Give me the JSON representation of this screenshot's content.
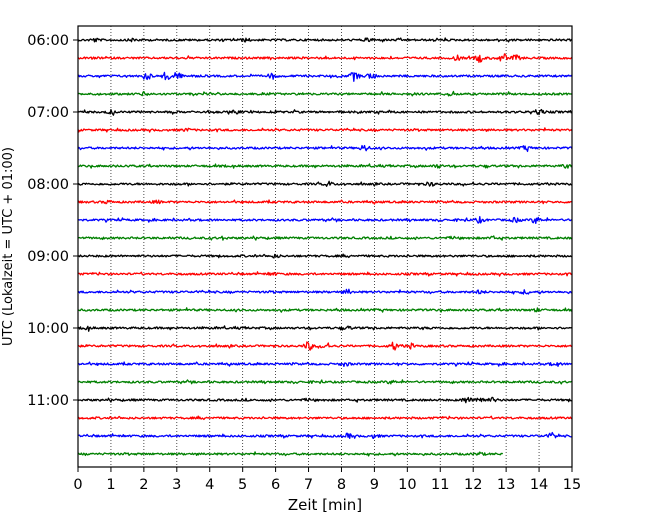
{
  "chart_data": {
    "type": "line",
    "title": "",
    "xlabel": "Zeit  [min]",
    "ylabel": "UTC (Lokalzeit = UTC + 01:00)",
    "xlim": [
      0,
      15
    ],
    "x_ticks": [
      "0",
      "1",
      "2",
      "3",
      "4",
      "5",
      "6",
      "7",
      "8",
      "9",
      "10",
      "11",
      "12",
      "13",
      "14",
      "15"
    ],
    "y_tick_labels": [
      "06:00",
      "07:00",
      "08:00",
      "09:00",
      "10:00",
      "11:00"
    ],
    "grid": "vertical dotted lines at each minute",
    "line_colors": [
      "#000000",
      "#ff0000",
      "#0000ff",
      "#008000"
    ],
    "traces": [
      {
        "start": "06:00",
        "color": "#000000",
        "end_min": 15,
        "bursts": [
          {
            "t": 0.5,
            "a": 1.5
          },
          {
            "t": 1.7,
            "a": 1.5
          },
          {
            "t": 5.1,
            "a": 1.2
          },
          {
            "t": 8.8,
            "a": 1.3
          }
        ]
      },
      {
        "start": "06:15",
        "color": "#ff0000",
        "end_min": 15,
        "bursts": [
          {
            "t": 11.5,
            "a": 2.0
          },
          {
            "t": 12.2,
            "a": 3.5
          },
          {
            "t": 12.9,
            "a": 4.0
          },
          {
            "t": 13.3,
            "a": 2.5
          }
        ]
      },
      {
        "start": "06:30",
        "color": "#0000ff",
        "end_min": 15,
        "bursts": [
          {
            "t": 2.1,
            "a": 3.0
          },
          {
            "t": 2.7,
            "a": 4.0
          },
          {
            "t": 3.0,
            "a": 3.5
          },
          {
            "t": 5.9,
            "a": 2.5
          },
          {
            "t": 8.4,
            "a": 4.5
          },
          {
            "t": 8.9,
            "a": 3.0
          }
        ]
      },
      {
        "start": "06:45",
        "color": "#008000",
        "end_min": 15,
        "bursts": [
          {
            "t": 2.0,
            "a": 1.5
          },
          {
            "t": 11.3,
            "a": 1.5
          }
        ]
      },
      {
        "start": "07:00",
        "color": "#000000",
        "end_min": 15,
        "bursts": [
          {
            "t": 1.0,
            "a": 1.5
          },
          {
            "t": 4.8,
            "a": 1.3
          },
          {
            "t": 14.0,
            "a": 2.5
          }
        ]
      },
      {
        "start": "07:15",
        "color": "#ff0000",
        "end_min": 15,
        "bursts": [
          {
            "t": 3.3,
            "a": 1.2
          }
        ]
      },
      {
        "start": "07:30",
        "color": "#0000ff",
        "end_min": 15,
        "bursts": [
          {
            "t": 8.7,
            "a": 3.0
          },
          {
            "t": 13.6,
            "a": 1.8
          }
        ]
      },
      {
        "start": "07:45",
        "color": "#008000",
        "end_min": 15,
        "bursts": [
          {
            "t": 10.9,
            "a": 1.5
          },
          {
            "t": 14.8,
            "a": 1.2
          }
        ]
      },
      {
        "start": "08:00",
        "color": "#000000",
        "end_min": 15,
        "bursts": [
          {
            "t": 7.6,
            "a": 2.0
          },
          {
            "t": 10.7,
            "a": 1.8
          }
        ]
      },
      {
        "start": "08:15",
        "color": "#ff0000",
        "end_min": 15,
        "bursts": [
          {
            "t": 0.9,
            "a": 1.2
          },
          {
            "t": 2.4,
            "a": 1.2
          }
        ]
      },
      {
        "start": "08:30",
        "color": "#0000ff",
        "end_min": 15,
        "bursts": [
          {
            "t": 12.2,
            "a": 2.5
          },
          {
            "t": 13.3,
            "a": 2.0
          },
          {
            "t": 13.9,
            "a": 3.0
          }
        ]
      },
      {
        "start": "08:45",
        "color": "#008000",
        "end_min": 15,
        "bursts": [
          {
            "t": 4.4,
            "a": 1.2
          },
          {
            "t": 12.6,
            "a": 1.2
          }
        ]
      },
      {
        "start": "09:00",
        "color": "#000000",
        "end_min": 15,
        "bursts": [
          {
            "t": 6.0,
            "a": 1.3
          }
        ]
      },
      {
        "start": "09:15",
        "color": "#ff0000",
        "end_min": 15,
        "bursts": [
          {
            "t": 5.9,
            "a": 1.2
          }
        ]
      },
      {
        "start": "09:30",
        "color": "#0000ff",
        "end_min": 15,
        "bursts": [
          {
            "t": 8.2,
            "a": 2.0
          },
          {
            "t": 12.2,
            "a": 1.5
          },
          {
            "t": 13.6,
            "a": 1.8
          }
        ]
      },
      {
        "start": "09:45",
        "color": "#008000",
        "end_min": 15,
        "bursts": [
          {
            "t": 13.9,
            "a": 1.3
          }
        ]
      },
      {
        "start": "10:00",
        "color": "#000000",
        "end_min": 15,
        "bursts": [
          {
            "t": 0.3,
            "a": 1.2
          },
          {
            "t": 8.2,
            "a": 1.2
          }
        ]
      },
      {
        "start": "10:15",
        "color": "#ff0000",
        "end_min": 15,
        "bursts": [
          {
            "t": 7.0,
            "a": 4.0
          },
          {
            "t": 7.5,
            "a": 2.5
          },
          {
            "t": 9.6,
            "a": 3.5
          },
          {
            "t": 10.1,
            "a": 2.0
          }
        ]
      },
      {
        "start": "10:30",
        "color": "#0000ff",
        "end_min": 15,
        "bursts": [
          {
            "t": 8.1,
            "a": 1.8
          },
          {
            "t": 14.5,
            "a": 2.0
          }
        ]
      },
      {
        "start": "10:45",
        "color": "#008000",
        "end_min": 15,
        "bursts": [
          {
            "t": 9.5,
            "a": 1.2
          }
        ]
      },
      {
        "start": "11:00",
        "color": "#000000",
        "end_min": 15,
        "bursts": [
          {
            "t": 11.8,
            "a": 3.0
          },
          {
            "t": 12.2,
            "a": 3.5
          },
          {
            "t": 12.6,
            "a": 2.0
          }
        ]
      },
      {
        "start": "11:15",
        "color": "#ff0000",
        "end_min": 15,
        "bursts": []
      },
      {
        "start": "11:30",
        "color": "#0000ff",
        "end_min": 15,
        "bursts": [
          {
            "t": 8.2,
            "a": 2.0
          },
          {
            "t": 9.0,
            "a": 1.5
          },
          {
            "t": 14.4,
            "a": 2.5
          }
        ]
      },
      {
        "start": "11:45",
        "color": "#008000",
        "end_min": 12.9,
        "bursts": [
          {
            "t": 12.2,
            "a": 1.2
          }
        ]
      }
    ]
  }
}
